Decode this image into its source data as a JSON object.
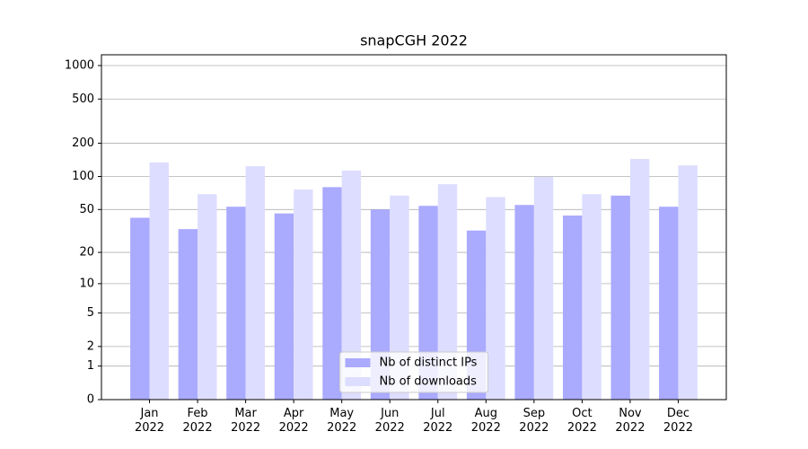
{
  "chart_data": {
    "type": "bar",
    "title": "snapCGH 2022",
    "categories": [
      "Jan\n2022",
      "Feb\n2022",
      "Mar\n2022",
      "Apr\n2022",
      "May\n2022",
      "Jun\n2022",
      "Jul\n2022",
      "Aug\n2022",
      "Sep\n2022",
      "Oct\n2022",
      "Nov\n2022",
      "Dec\n2022"
    ],
    "series": [
      {
        "name": "Nb of distinct IPs",
        "color": "#aaaaff",
        "values": [
          42,
          33,
          53,
          46,
          80,
          50,
          54,
          32,
          55,
          44,
          67,
          53
        ]
      },
      {
        "name": "Nb of downloads",
        "color": "#ddddff",
        "values": [
          134,
          69,
          124,
          76,
          113,
          67,
          85,
          65,
          99,
          69,
          144,
          126
        ]
      }
    ],
    "yscale": "log1p",
    "ylim": [
      0,
      1250
    ],
    "yticks": [
      0,
      1,
      2,
      5,
      10,
      20,
      50,
      100,
      200,
      500,
      1000
    ],
    "grid": true,
    "legend": "lower center"
  }
}
